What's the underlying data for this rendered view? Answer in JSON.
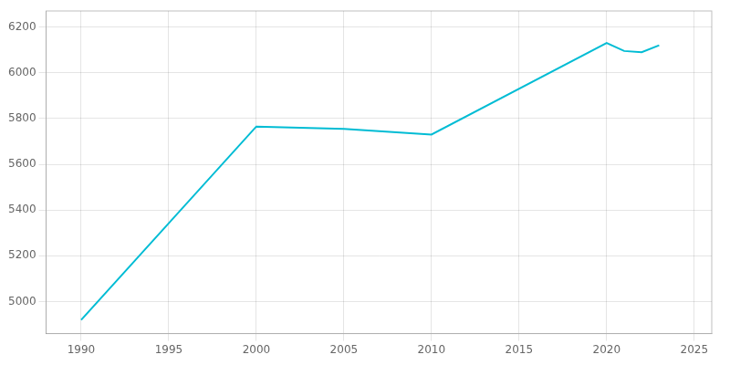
{
  "chart_data": {
    "type": "line",
    "x": [
      1990,
      2000,
      2005,
      2010,
      2020,
      2021,
      2022,
      2023
    ],
    "values": [
      4920,
      5765,
      5755,
      5730,
      6130,
      6095,
      6090,
      6120
    ],
    "color": "#00BCD4",
    "xlim": [
      1988,
      2026
    ],
    "ylim": [
      4860,
      6270
    ],
    "xticks": [
      1990,
      1995,
      2000,
      2005,
      2010,
      2015,
      2020,
      2025
    ],
    "yticks": [
      5000,
      5200,
      5400,
      5600,
      5800,
      6000,
      6200
    ],
    "grid": true
  }
}
